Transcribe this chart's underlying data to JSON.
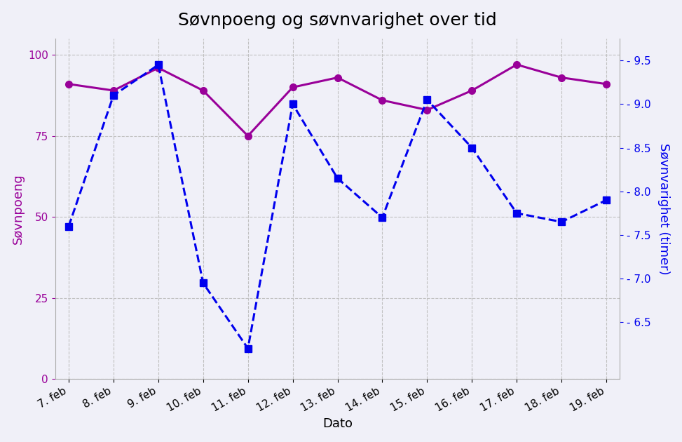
{
  "title": "Søvnpoeng og søvnvarighet over tid",
  "dates": [
    "7. feb",
    "8. feb",
    "9. feb",
    "10. feb",
    "11. feb",
    "12. feb",
    "13. feb",
    "14. feb",
    "15. feb",
    "16. feb",
    "17. feb",
    "18. feb",
    "19. feb"
  ],
  "sleep_score": [
    91,
    89,
    96,
    89,
    75,
    90,
    93,
    86,
    83,
    89,
    97,
    93,
    91
  ],
  "sleep_duration": [
    7.6,
    9.1,
    9.45,
    6.95,
    6.2,
    9.0,
    8.15,
    7.7,
    9.05,
    8.5,
    7.75,
    7.65,
    7.9
  ],
  "score_color": "#990099",
  "duration_color": "#0000ee",
  "score_ylim": [
    0,
    105
  ],
  "duration_ylim": [
    5.85,
    9.75
  ],
  "duration_yticks": [
    6.5,
    7.0,
    7.5,
    8.0,
    8.5,
    9.0,
    9.5
  ],
  "score_yticks": [
    0,
    25,
    50,
    75,
    100
  ],
  "xlabel": "Dato",
  "ylabel_left": "Søvnpoeng",
  "ylabel_right": "Søvnvarighet (timer)",
  "background_color": "#f0f0f8",
  "grid_color": "#c0c0c0",
  "title_fontsize": 18,
  "label_fontsize": 13,
  "tick_fontsize": 11
}
